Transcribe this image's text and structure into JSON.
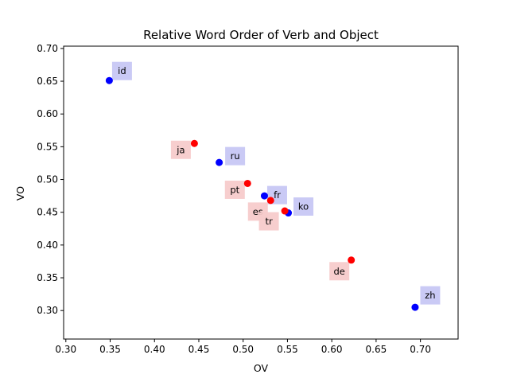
{
  "chart_data": {
    "type": "scatter",
    "title": "Relative Word Order of Verb and Object",
    "xlabel": "OV",
    "ylabel": "VO",
    "xlim": [
      0.2975,
      0.7425
    ],
    "ylim": [
      0.2565,
      0.7035
    ],
    "xticks": [
      0.3,
      0.35,
      0.4,
      0.45,
      0.5,
      0.55,
      0.6,
      0.65,
      0.7
    ],
    "yticks": [
      0.3,
      0.35,
      0.4,
      0.45,
      0.5,
      0.55,
      0.6,
      0.65,
      0.7
    ],
    "grid": false,
    "series": [
      {
        "color": "#0000ff",
        "label_box_color": "#c8c8f5",
        "points": [
          {
            "label": "id",
            "x": 0.349,
            "y": 0.651
          },
          {
            "label": "ru",
            "x": 0.473,
            "y": 0.526
          },
          {
            "label": "fr",
            "x": 0.524,
            "y": 0.475
          },
          {
            "label": "ko",
            "x": 0.551,
            "y": 0.449
          },
          {
            "label": "zh",
            "x": 0.694,
            "y": 0.305
          }
        ]
      },
      {
        "color": "#ff0000",
        "label_box_color": "#f7cccc",
        "points": [
          {
            "label": "ja",
            "x": 0.445,
            "y": 0.555
          },
          {
            "label": "pt",
            "x": 0.505,
            "y": 0.494
          },
          {
            "label": "es",
            "x": 0.531,
            "y": 0.468
          },
          {
            "label": "tr",
            "x": 0.547,
            "y": 0.452
          },
          {
            "label": "de",
            "x": 0.622,
            "y": 0.377
          }
        ]
      }
    ]
  }
}
